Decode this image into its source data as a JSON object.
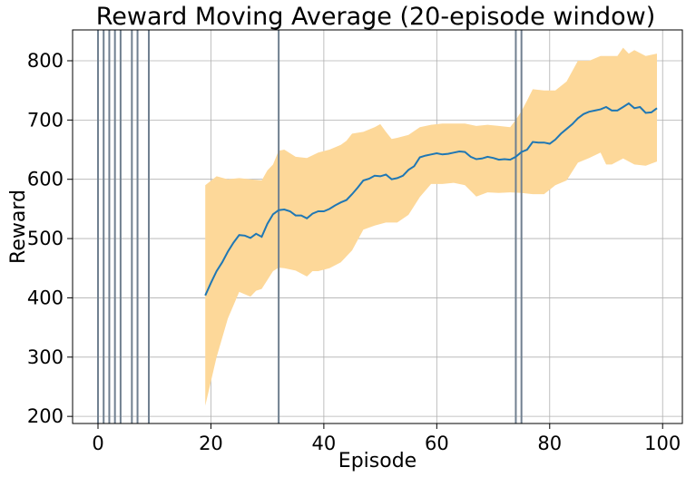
{
  "chart_data": {
    "type": "line",
    "title": "Reward Moving Average (20-episode window)",
    "xlabel": "Episode",
    "ylabel": "Reward",
    "xlim": [
      -4.5,
      103.5
    ],
    "ylim": [
      188,
      852
    ],
    "xticks": [
      0,
      20,
      40,
      60,
      80,
      100
    ],
    "yticks": [
      200,
      300,
      400,
      500,
      600,
      700,
      800
    ],
    "grid": true,
    "colors": {
      "line": "#1f77b4",
      "band": "#fdd899",
      "vlines": "#708090"
    },
    "vertical_lines": [
      0,
      1,
      2,
      3,
      4,
      6,
      7,
      9,
      32,
      74,
      75
    ],
    "series": [
      {
        "kind": "mean_line",
        "x": [
          19,
          20,
          21,
          22,
          23,
          24,
          25,
          26,
          27,
          28,
          29,
          30,
          31,
          32,
          33,
          34,
          35,
          36,
          37,
          38,
          39,
          40,
          41,
          42,
          43,
          44,
          45,
          46,
          47,
          48,
          49,
          50,
          51,
          52,
          53,
          54,
          55,
          56,
          57,
          58,
          59,
          60,
          61,
          62,
          63,
          64,
          65,
          66,
          67,
          68,
          69,
          70,
          71,
          72,
          73,
          74,
          75,
          76,
          77,
          78,
          79,
          80,
          81,
          82,
          83,
          84,
          85,
          86,
          87,
          88,
          89,
          90,
          91,
          92,
          93,
          94,
          95,
          96,
          97,
          98,
          99
        ],
        "y": [
          404,
          425,
          445,
          460,
          478,
          493,
          506,
          505,
          501,
          508,
          503,
          525,
          541,
          548,
          549,
          546,
          539,
          539,
          534,
          542,
          546,
          546,
          550,
          556,
          561,
          565,
          575,
          586,
          598,
          601,
          606,
          605,
          608,
          600,
          602,
          606,
          616,
          622,
          637,
          640,
          642,
          644,
          642,
          643,
          645,
          647,
          646,
          638,
          634,
          635,
          638,
          636,
          633,
          634,
          633,
          638,
          646,
          650,
          663,
          662,
          662,
          660,
          667,
          677,
          685,
          693,
          703,
          710,
          714,
          716,
          718,
          722,
          716,
          716,
          722,
          728,
          720,
          722,
          712,
          713,
          720
        ]
      },
      {
        "kind": "upper_band",
        "x": [
          19,
          21,
          23,
          25,
          27,
          29,
          30,
          31,
          32,
          33,
          35,
          37,
          39,
          41,
          43,
          44,
          45,
          47,
          49,
          50,
          51,
          52,
          53,
          55,
          57,
          59,
          61,
          63,
          65,
          67,
          69,
          71,
          73,
          74,
          75,
          76,
          77,
          79,
          81,
          83,
          85,
          87,
          89,
          91,
          92,
          93,
          94,
          95,
          97,
          99
        ],
        "y": [
          590,
          605,
          600,
          602,
          600,
          598,
          615,
          625,
          648,
          650,
          638,
          636,
          645,
          650,
          658,
          665,
          677,
          680,
          688,
          693,
          680,
          668,
          670,
          675,
          688,
          692,
          694,
          694,
          694,
          690,
          692,
          690,
          688,
          700,
          715,
          733,
          752,
          750,
          750,
          765,
          800,
          800,
          808,
          808,
          808,
          822,
          812,
          818,
          808,
          812
        ]
      },
      {
        "kind": "lower_band",
        "x": [
          19,
          21,
          23,
          25,
          27,
          28,
          29,
          31,
          32,
          33,
          35,
          37,
          38,
          39,
          41,
          43,
          45,
          47,
          49,
          51,
          53,
          55,
          57,
          59,
          61,
          63,
          65,
          67,
          69,
          71,
          73,
          75,
          77,
          79,
          81,
          83,
          85,
          87,
          89,
          90,
          91,
          93,
          95,
          97,
          99
        ],
        "y": [
          218,
          300,
          365,
          410,
          402,
          412,
          415,
          445,
          451,
          450,
          446,
          436,
          445,
          445,
          450,
          460,
          480,
          515,
          522,
          527,
          527,
          540,
          570,
          592,
          592,
          594,
          590,
          571,
          578,
          577,
          578,
          577,
          575,
          575,
          590,
          598,
          628,
          636,
          645,
          625,
          625,
          635,
          625,
          623,
          630
        ]
      }
    ]
  }
}
